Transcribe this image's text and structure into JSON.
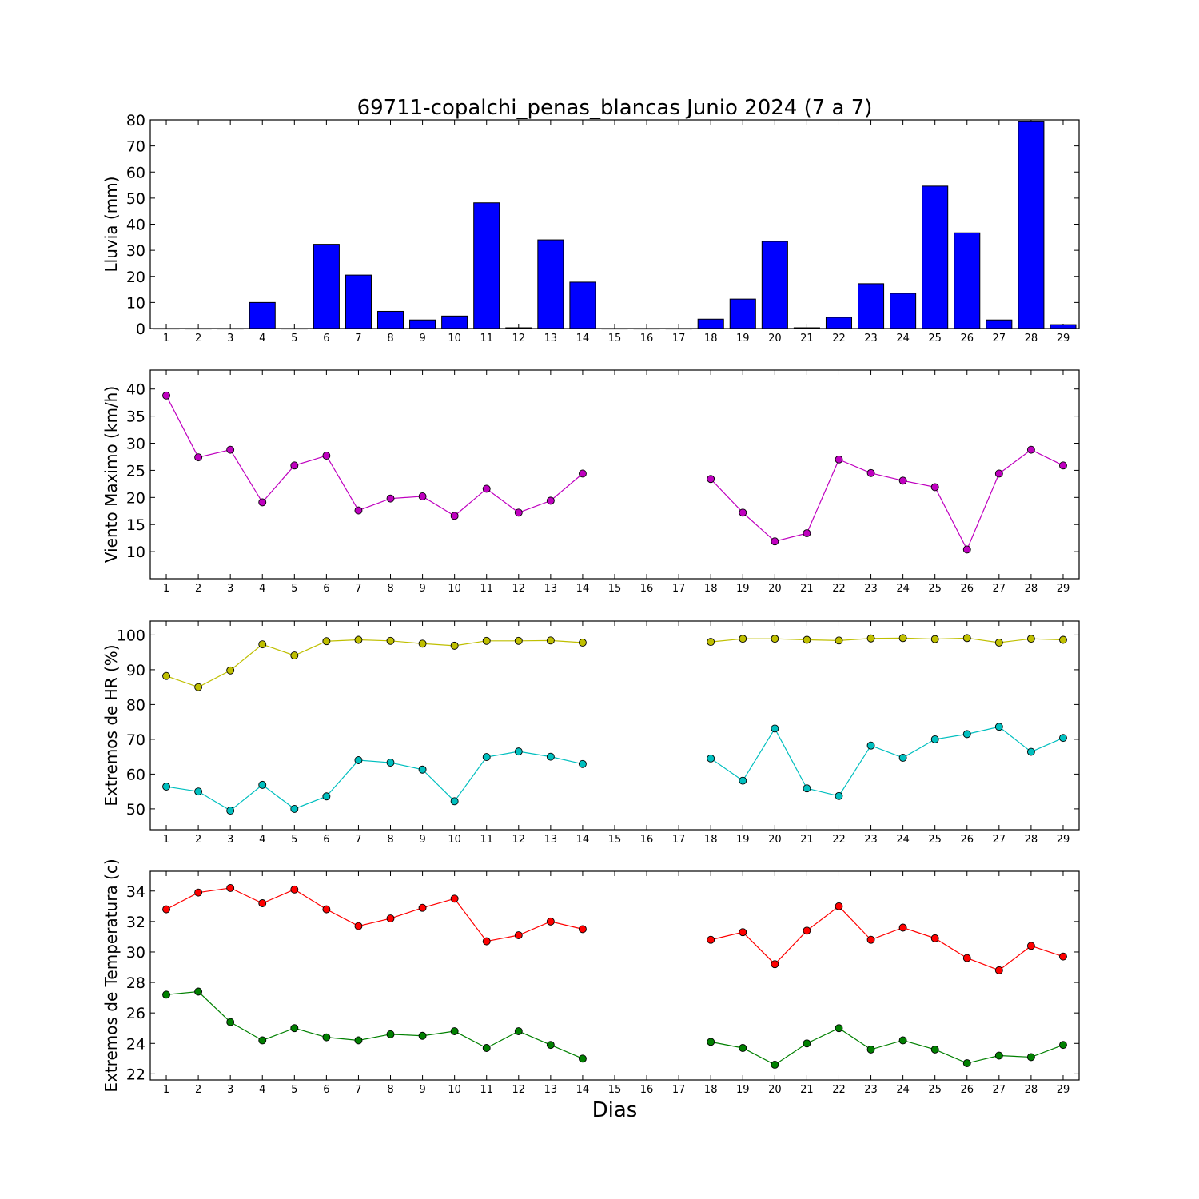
{
  "title": "69711-copalchi_penas_blancas Junio 2024  (7 a 7)",
  "xlabel": "Dias",
  "chart_data": [
    {
      "type": "bar",
      "ylabel": "Lluvia (mm)",
      "ylim": [
        0,
        80
      ],
      "yticks": [
        0,
        10,
        20,
        30,
        40,
        50,
        60,
        70,
        80
      ],
      "xlim": [
        0.5,
        29.5
      ],
      "categories": [
        1,
        2,
        3,
        4,
        5,
        6,
        7,
        8,
        9,
        10,
        11,
        12,
        13,
        14,
        15,
        16,
        17,
        18,
        19,
        20,
        21,
        22,
        23,
        24,
        25,
        26,
        27,
        28,
        29
      ],
      "series": [
        {
          "color": "#0000ff",
          "values": [
            0,
            0,
            0,
            10,
            0,
            32.3,
            20.5,
            6.6,
            3.3,
            4.8,
            48.2,
            0.3,
            34,
            17.8,
            0,
            0,
            0,
            3.6,
            11.3,
            33.4,
            0.3,
            4.3,
            17.2,
            13.5,
            54.6,
            36.7,
            3.3,
            79.3,
            1.5
          ]
        }
      ]
    },
    {
      "type": "line",
      "ylabel": "Viento Maximo (km/h)",
      "ylim": [
        5,
        43.5
      ],
      "yticks": [
        10,
        15,
        20,
        25,
        30,
        35,
        40
      ],
      "xlim": [
        0.5,
        29.5
      ],
      "x": [
        1,
        2,
        3,
        4,
        5,
        6,
        7,
        8,
        9,
        10,
        11,
        12,
        13,
        14,
        15,
        16,
        17,
        18,
        19,
        20,
        21,
        22,
        23,
        24,
        25,
        26,
        27,
        28,
        29
      ],
      "series": [
        {
          "color": "#bf00bf",
          "values": [
            38.8,
            27.4,
            28.8,
            19.1,
            25.9,
            27.7,
            17.6,
            19.8,
            20.2,
            16.6,
            21.6,
            17.2,
            19.4,
            24.4,
            null,
            null,
            null,
            23.4,
            17.2,
            11.9,
            13.4,
            27,
            24.5,
            23.1,
            21.9,
            10.4,
            24.4,
            28.8,
            25.9
          ]
        }
      ]
    },
    {
      "type": "line",
      "ylabel": "Extremos de HR (%)",
      "ylim": [
        44,
        104
      ],
      "yticks": [
        50,
        60,
        70,
        80,
        90,
        100
      ],
      "xlim": [
        0.5,
        29.5
      ],
      "x": [
        1,
        2,
        3,
        4,
        5,
        6,
        7,
        8,
        9,
        10,
        11,
        12,
        13,
        14,
        15,
        16,
        17,
        18,
        19,
        20,
        21,
        22,
        23,
        24,
        25,
        26,
        27,
        28,
        29
      ],
      "series": [
        {
          "color": "#bfbf00",
          "values": [
            88.2,
            85,
            89.8,
            97.3,
            94.1,
            98.2,
            98.6,
            98.3,
            97.5,
            96.9,
            98.3,
            98.3,
            98.4,
            97.8,
            null,
            null,
            null,
            98,
            98.9,
            98.9,
            98.6,
            98.4,
            99,
            99.1,
            98.8,
            99.1,
            97.8,
            98.9,
            98.6
          ]
        },
        {
          "color": "#00bfbf",
          "values": [
            56.4,
            55,
            49.5,
            56.9,
            50,
            53.6,
            64,
            63.3,
            61.3,
            52.2,
            64.9,
            66.5,
            65,
            62.9,
            null,
            null,
            null,
            64.5,
            58.1,
            73.1,
            55.9,
            53.7,
            68.2,
            64.7,
            70,
            71.5,
            73.6,
            66.4,
            70.4
          ]
        }
      ]
    },
    {
      "type": "line",
      "ylabel": "Extremos de Temperatura (c)",
      "ylim": [
        21.6,
        35.3
      ],
      "yticks": [
        22,
        24,
        26,
        28,
        30,
        32,
        34
      ],
      "xlim": [
        0.5,
        29.5
      ],
      "x": [
        1,
        2,
        3,
        4,
        5,
        6,
        7,
        8,
        9,
        10,
        11,
        12,
        13,
        14,
        15,
        16,
        17,
        18,
        19,
        20,
        21,
        22,
        23,
        24,
        25,
        26,
        27,
        28,
        29
      ],
      "series": [
        {
          "color": "#ff0000",
          "values": [
            32.8,
            33.9,
            34.2,
            33.2,
            34.1,
            32.8,
            31.7,
            32.2,
            32.9,
            33.5,
            30.7,
            31.1,
            32,
            31.5,
            null,
            null,
            null,
            30.8,
            31.3,
            29.2,
            31.4,
            33,
            30.8,
            31.6,
            30.9,
            29.6,
            28.8,
            30.4,
            29.7
          ]
        },
        {
          "color": "#008000",
          "values": [
            27.2,
            27.4,
            25.4,
            24.2,
            25,
            24.4,
            24.2,
            24.6,
            24.5,
            24.8,
            23.7,
            24.8,
            23.9,
            23,
            null,
            null,
            null,
            24.1,
            23.7,
            22.6,
            24,
            25,
            23.6,
            24.2,
            23.6,
            22.7,
            23.2,
            23.1,
            23.9
          ]
        }
      ]
    }
  ]
}
